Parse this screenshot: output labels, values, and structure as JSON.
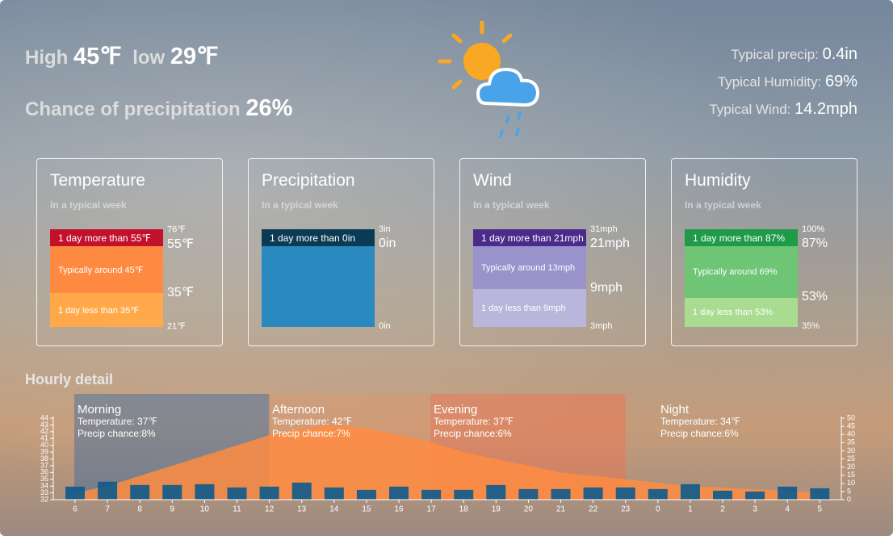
{
  "header": {
    "high_label": "High",
    "high": "45℉",
    "low_label": "low",
    "low": "29℉",
    "precip_label": "Chance of precipitation",
    "precip": "26%"
  },
  "typical": [
    {
      "label": "Typical precip:",
      "value": "0.4in"
    },
    {
      "label": "Typical Humidity:",
      "value": "69%"
    },
    {
      "label": "Typical Wind:",
      "value": "14.2mph"
    }
  ],
  "cards": [
    {
      "title": "Temperature",
      "subtitle": "In a typical week",
      "segments": [
        {
          "label": "1 day more than 55℉",
          "color": "#c3112c"
        },
        {
          "label": "Typically around 45℉",
          "color": "#fe8a41"
        },
        {
          "label": "1 day less than 35℉",
          "color": "#ffa94a"
        }
      ],
      "scale": [
        "76℉",
        "55℉",
        "35℉",
        "21℉"
      ]
    },
    {
      "title": "Precipitation",
      "subtitle": "In a typical week",
      "segments": [
        {
          "label": "1 day more than 0in",
          "color": "#0b3a54"
        },
        {
          "color": "#2a8abf"
        }
      ],
      "scale": [
        "3in",
        "0in",
        "0in"
      ]
    },
    {
      "title": "Wind",
      "subtitle": "In a typical week",
      "segments": [
        {
          "label": "1 day more than 21mph",
          "color": "#4b2a8a"
        },
        {
          "label": "Typically around 13mph",
          "color": "#9a93cb"
        },
        {
          "label": "1 day less than 9mph",
          "color": "#b9b6dc"
        }
      ],
      "scale": [
        "31mph",
        "21mph",
        "9mph",
        "3mph"
      ]
    },
    {
      "title": "Humidity",
      "subtitle": "In a typical week",
      "segments": [
        {
          "label": "1 day more than 87%",
          "color": "#1e9a49"
        },
        {
          "label": "Typically around 69%",
          "color": "#6dc575"
        },
        {
          "label": "1 day less than 53%",
          "color": "#a9dc91"
        }
      ],
      "scale": [
        "100%",
        "87%",
        "53%",
        "35%"
      ]
    }
  ],
  "chart_data": {
    "type": "combo",
    "title": "Hourly detail",
    "categories": [
      "6",
      "7",
      "8",
      "9",
      "10",
      "11",
      "12",
      "13",
      "14",
      "15",
      "16",
      "17",
      "18",
      "19",
      "20",
      "21",
      "22",
      "23",
      "0",
      "1",
      "2",
      "3",
      "4",
      "5"
    ],
    "series": [
      {
        "color": "#ff8c42",
        "values": [
          33,
          34,
          35.5,
          37,
          38.5,
          40,
          41.5,
          42.5,
          43,
          42.5,
          41.5,
          40.5,
          39,
          38,
          37,
          36,
          35.5,
          35,
          34.5,
          34,
          33.8,
          33.5,
          33.3,
          33
        ]
      },
      {
        "color": "#0d5a8c",
        "axis": "y2",
        "values": [
          8,
          11,
          9,
          9,
          9.5,
          7.5,
          8,
          10.5,
          7.5,
          6,
          8,
          6,
          6,
          9,
          6.5,
          6.5,
          7.5,
          7.5,
          6.5,
          9.5,
          5.5,
          5,
          8,
          7
        ]
      }
    ],
    "ylim": [
      32,
      44
    ],
    "yticks": [
      32,
      33,
      34,
      35,
      36,
      37,
      38,
      39,
      40,
      41,
      42,
      43,
      44
    ],
    "y2lim": [
      0,
      50
    ],
    "y2ticks": [
      0,
      5,
      10,
      15,
      20,
      25,
      30,
      35,
      40,
      45,
      50
    ],
    "periods": [
      {
        "name": "Morning",
        "temperature": "Temperature: 37℉",
        "precip": "Precip chance:8%"
      },
      {
        "name": "Afternoon",
        "temperature": "Temperature: 42℉",
        "precip": "Precip chance:7%"
      },
      {
        "name": "Evening",
        "temperature": "Temperature: 37℉",
        "precip": "Precip chance:6%"
      },
      {
        "name": "Night",
        "temperature": "Temperature: 34℉",
        "precip": "Precip chance:6%"
      }
    ]
  }
}
